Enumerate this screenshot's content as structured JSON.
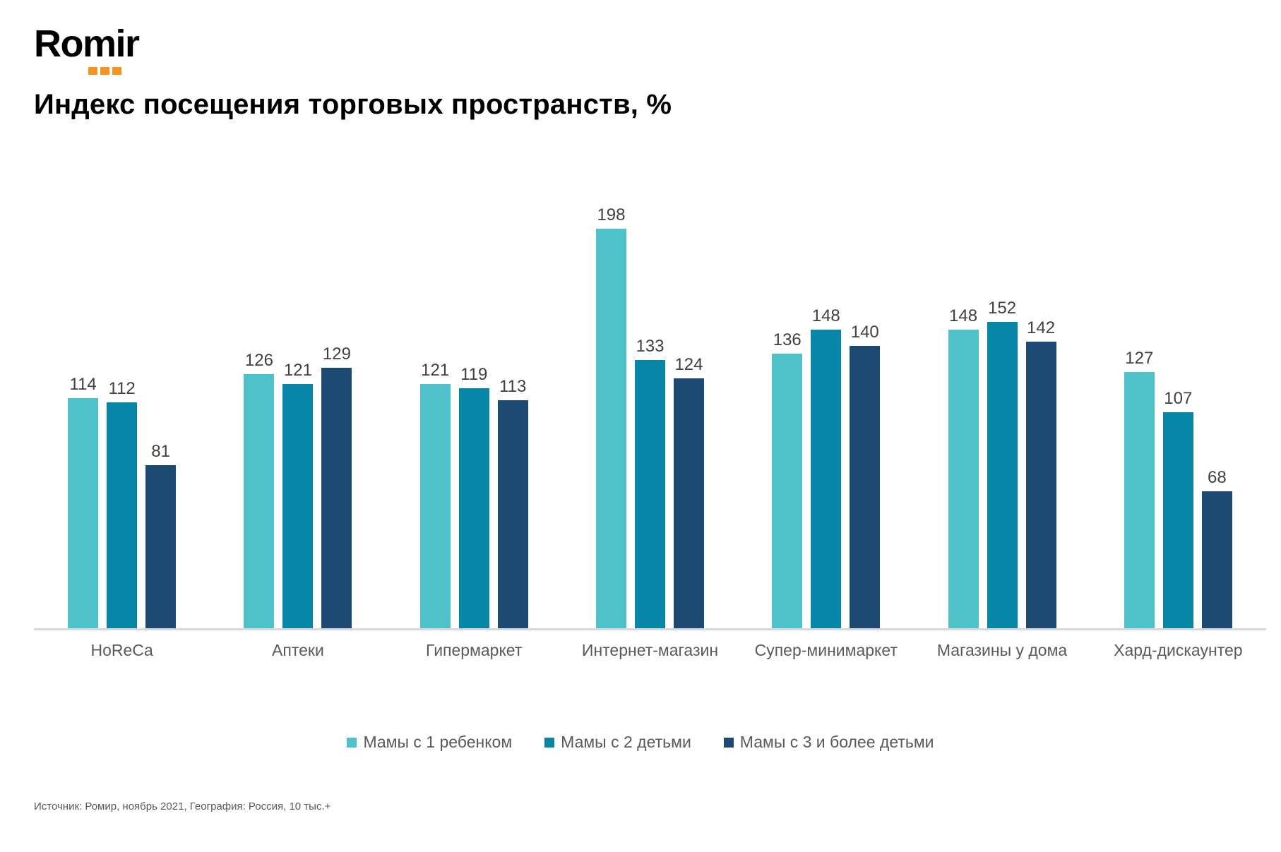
{
  "brand": {
    "logo_text": "Romir",
    "accent_color": "#F7941D"
  },
  "title": "Индекс посещения торговых пространств, %",
  "chart_data": {
    "type": "bar",
    "title": "Индекс посещения торговых пространств, %",
    "categories": [
      "HoReCa",
      "Аптеки",
      "Гипермаркет",
      "Интернет-магазин",
      "Супер-минимаркет",
      "Магазины у дома",
      "Хард-дискаунтер"
    ],
    "series": [
      {
        "name": "Мамы с 1 ребенком",
        "color": "#4EC1C9",
        "values": [
          114,
          126,
          121,
          198,
          136,
          148,
          127
        ]
      },
      {
        "name": "Мамы с 2 детьми",
        "color": "#0886A8",
        "values": [
          112,
          121,
          119,
          133,
          148,
          152,
          107
        ]
      },
      {
        "name": "Мамы с 3 и более детьми",
        "color": "#1C4A72",
        "values": [
          81,
          129,
          113,
          124,
          140,
          142,
          68
        ]
      }
    ],
    "xlabel": "",
    "ylabel": "",
    "ylim": [
      0,
      210
    ],
    "grid": false,
    "value_labels": true,
    "legend_position": "bottom",
    "axis_line_color": "#D9D9D9",
    "value_label_color": "#404040",
    "category_label_color": "#595959"
  },
  "footer": {
    "source_text": "Источник: Ромир, ноябрь 2021, География: Россия, 10 тыс.+"
  }
}
